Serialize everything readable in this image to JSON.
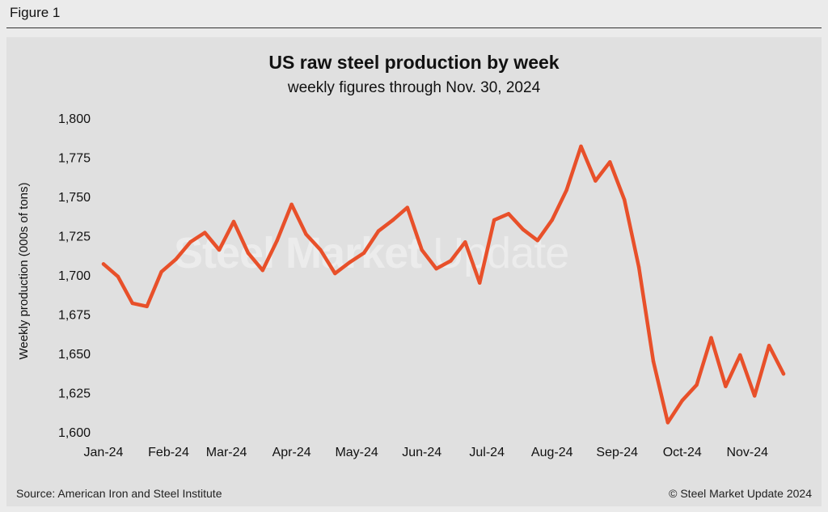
{
  "figure_label": "Figure 1",
  "footer": {
    "source": "Source: American Iron and Steel Institute",
    "copyright": "© Steel Market Update 2024"
  },
  "watermark": {
    "bold": "Steel Market ",
    "light": "Update"
  },
  "colors": {
    "line": "#e8502a",
    "panel": "#e0e0e0",
    "background": "#ebebeb"
  },
  "chart_data": {
    "type": "line",
    "title": "US raw steel production by week",
    "subtitle": "weekly figures through Nov. 30, 2024",
    "ylabel": "Weekly production (000s of tons)",
    "xlabel": "",
    "ylim": [
      1600,
      1800
    ],
    "y_ticks": [
      1600,
      1625,
      1650,
      1675,
      1700,
      1725,
      1750,
      1775,
      1800
    ],
    "y_tick_labels": [
      "1,600",
      "1,625",
      "1,650",
      "1,675",
      "1,700",
      "1,725",
      "1,750",
      "1,775",
      "1,800"
    ],
    "x_tick_labels": [
      "Jan-24",
      "Feb-24",
      "Mar-24",
      "Apr-24",
      "May-24",
      "Jun-24",
      "Jul-24",
      "Aug-24",
      "Sep-24",
      "Oct-24",
      "Nov-24"
    ],
    "x_tick_weeks": [
      0,
      4.5,
      8.5,
      13,
      17.5,
      22,
      26.5,
      31,
      35.5,
      40,
      44.5
    ],
    "grid": false,
    "series": [
      {
        "name": "Weekly production",
        "values": [
          1707,
          1699,
          1682,
          1680,
          1702,
          1710,
          1721,
          1727,
          1716,
          1734,
          1714,
          1703,
          1722,
          1745,
          1726,
          1716,
          1701,
          1708,
          1714,
          1728,
          1735,
          1743,
          1716,
          1704,
          1709,
          1721,
          1695,
          1735,
          1739,
          1729,
          1722,
          1735,
          1754,
          1782,
          1760,
          1772,
          1748,
          1705,
          1645,
          1606,
          1620,
          1630,
          1660,
          1629,
          1649,
          1623,
          1655,
          1637
        ]
      }
    ]
  }
}
